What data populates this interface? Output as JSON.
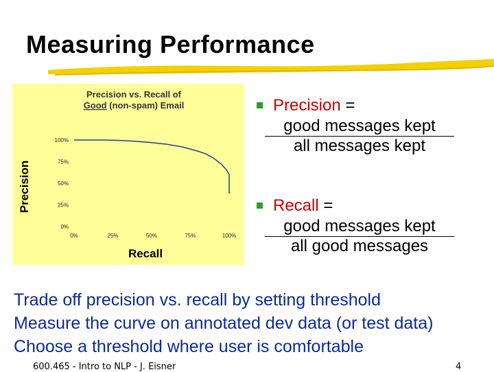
{
  "slide": {
    "title": "Measuring Performance",
    "accent_color": "#f4d000",
    "footer_left": "600.465 - Intro to NLP - J. Eisner",
    "page_number": "4"
  },
  "formulas": [
    {
      "term": "Precision",
      "equals": " =",
      "numerator": "good messages kept",
      "denominator": "all messages kept"
    },
    {
      "term": "Recall",
      "equals": " =",
      "numerator": "good messages kept",
      "denominator": "all good messages"
    }
  ],
  "body_lines": [
    "Trade off precision vs. recall by setting threshold",
    "Measure the curve on annotated dev data (or test data)",
    "Choose a threshold where user is comfortable"
  ],
  "chart_data": {
    "type": "line",
    "title_line1": "Precision vs. Recall of",
    "title_underlined": "Good",
    "title_rest": " (non-spam) Email",
    "xlabel": "Recall",
    "ylabel": "Precision",
    "xlim": [
      0,
      100
    ],
    "ylim": [
      0,
      100
    ],
    "x_ticks": [
      "0%",
      "25%",
      "50%",
      "75%",
      "100%"
    ],
    "y_ticks": [
      "0%",
      "25%",
      "50%",
      "75%",
      "100%"
    ],
    "grid": false,
    "background_color": "#ffff99",
    "line_color": "#1f3f8f",
    "series": [
      {
        "x": [
          0,
          10,
          20,
          30,
          40,
          50,
          60,
          70,
          80,
          85,
          90,
          95,
          98,
          100,
          100
        ],
        "y": [
          100,
          100,
          100,
          99.5,
          98.5,
          97,
          95,
          92,
          87,
          84,
          79,
          72,
          66,
          60,
          38
        ]
      }
    ]
  }
}
